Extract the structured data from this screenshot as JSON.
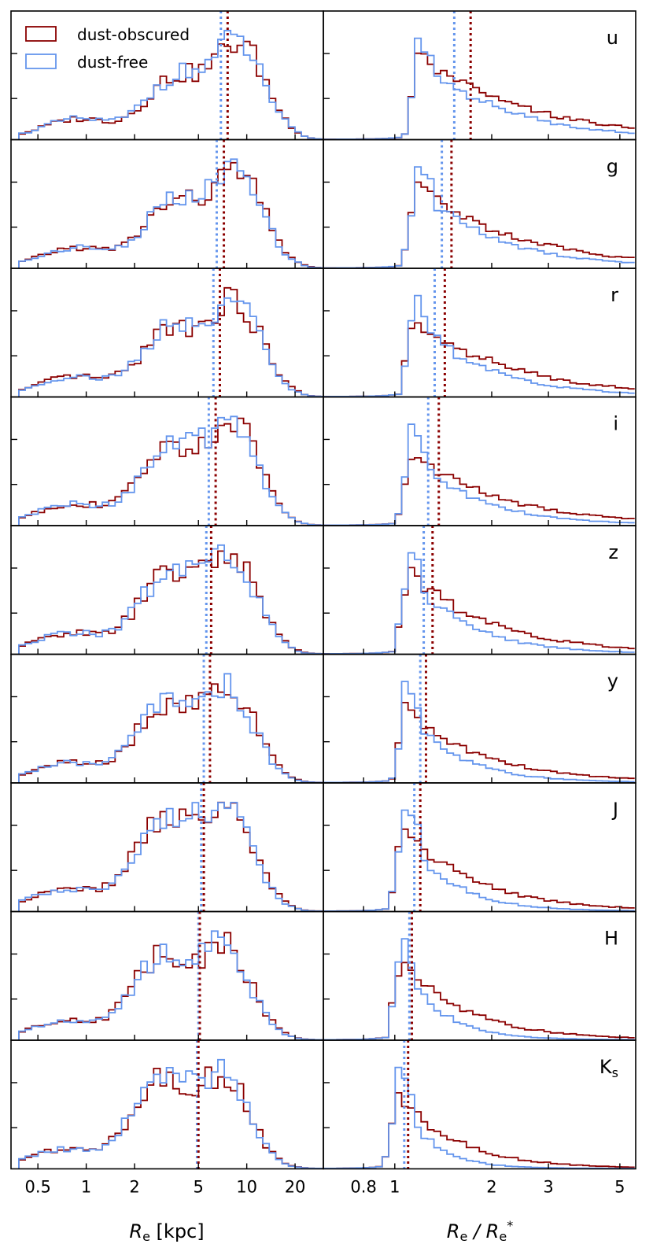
{
  "chart_data": {
    "type": "histogram-step",
    "legend": {
      "placement": "top-left of first panel",
      "entries": [
        {
          "label": "dust-obscured",
          "color": "#8b0000"
        },
        {
          "label": "dust-free",
          "color": "#6495ed"
        }
      ]
    },
    "bands": [
      {
        "label": "u",
        "median_left_red": 7.6,
        "median_left_blue": 6.9,
        "median_right_red": 1.72,
        "median_right_blue": 1.53
      },
      {
        "label": "g",
        "median_left_red": 7.2,
        "median_left_blue": 6.5,
        "median_right_red": 1.5,
        "median_right_blue": 1.4
      },
      {
        "label": "r",
        "median_left_red": 6.8,
        "median_left_blue": 6.2,
        "median_right_red": 1.43,
        "median_right_blue": 1.33
      },
      {
        "label": "i",
        "median_left_red": 6.4,
        "median_left_blue": 5.8,
        "median_right_red": 1.37,
        "median_right_blue": 1.27
      },
      {
        "label": "z",
        "median_left_red": 6.0,
        "median_left_blue": 5.6,
        "median_right_red": 1.31,
        "median_right_blue": 1.23
      },
      {
        "label": "y",
        "median_left_red": 5.9,
        "median_left_blue": 5.4,
        "median_right_red": 1.25,
        "median_right_blue": 1.2
      },
      {
        "label": "J",
        "median_left_red": 5.4,
        "median_left_blue": 5.2,
        "median_right_red": 1.2,
        "median_right_blue": 1.15
      },
      {
        "label": "H",
        "median_left_red": 5.1,
        "median_left_blue": 5.0,
        "median_right_red": 1.13,
        "median_right_blue": 1.11
      },
      {
        "label": "K",
        "label_sub": "s",
        "median_left_red": 5.0,
        "median_left_blue": 4.9,
        "median_right_red": 1.1,
        "median_right_blue": 1.07
      }
    ],
    "left_axis": {
      "label_main": "R",
      "label_sub": "e",
      "label_tail": " [kpc]",
      "scale": "log",
      "xlim": [
        0.34,
        30
      ],
      "ticks": [
        0.5,
        1,
        2,
        5,
        10,
        20
      ],
      "tick_labels": [
        "0.5",
        "1",
        "2",
        "5",
        "10",
        "20"
      ]
    },
    "right_axis": {
      "label_main": "R",
      "label_sub": "e",
      "label_mid": " / R",
      "label_sub2": "e",
      "label_sup2": "*",
      "scale": "log",
      "xlim": [
        0.6,
        5.6
      ],
      "ticks": [
        0.8,
        1,
        2,
        3,
        5
      ],
      "tick_labels": [
        "0.8",
        "1",
        "2",
        "3",
        "5"
      ]
    },
    "histogram_shape": {
      "left_bins_log_range": [
        -0.42,
        1.5
      ],
      "left_bins": 48,
      "left_components": [
        {
          "center_log": -0.05,
          "width_log": 0.22,
          "weight": 0.22,
          "band_shift": 0.0
        },
        {
          "center_log": 0.55,
          "width_log": 0.18,
          "weight": 0.65,
          "band_shift": -0.01
        },
        {
          "center_log": 0.95,
          "width_log": 0.16,
          "weight": 1.0,
          "band_shift": -0.02
        }
      ],
      "right_bins_log_range": [
        -0.22,
        0.745
      ],
      "right_bins": 48,
      "right_peak_onset_log": 0.0,
      "grid": false
    }
  }
}
